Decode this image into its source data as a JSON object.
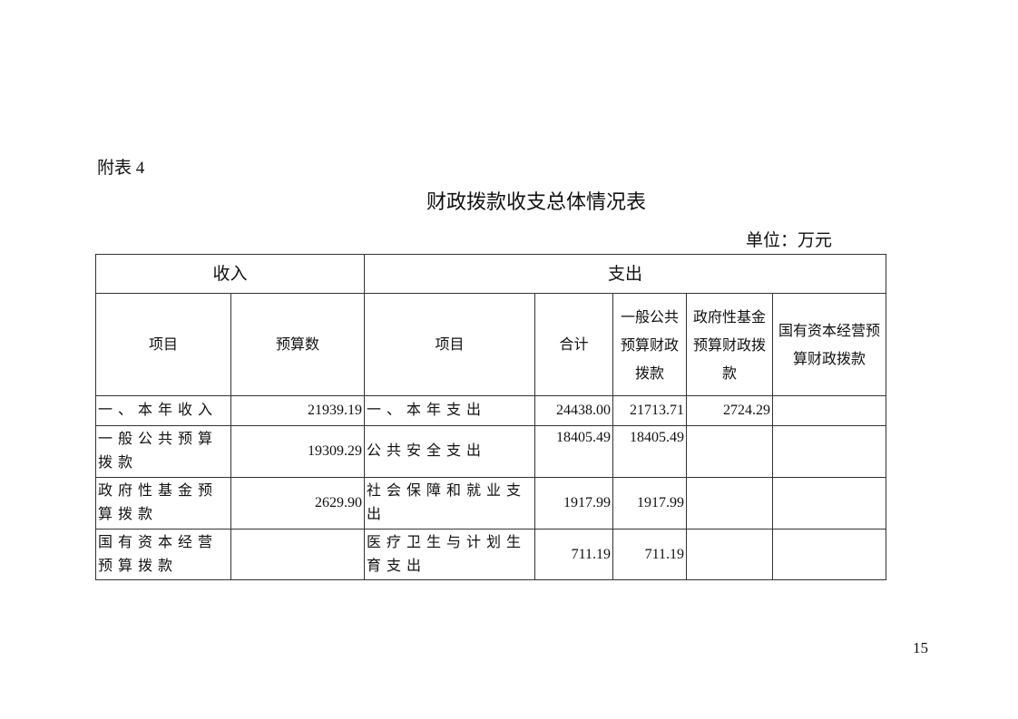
{
  "appendix_label": "附表 4",
  "title": "财政拨款收支总体情况表",
  "unit": "单位：万元",
  "page_number": "15",
  "table": {
    "group_headers": {
      "income": "收入",
      "expense": "支出"
    },
    "headers": [
      "项目",
      "预算数",
      "项目",
      "合计",
      "一般公共预算财政拨款",
      "政府性基金预算财政拨款",
      "国有资本经营预算财政拨款"
    ],
    "rows": [
      [
        "一、本年收入",
        "21939.19",
        "一、本年支出",
        "24438.00",
        "21713.71",
        "2724.29",
        ""
      ],
      [
        "一般公共预算拨款",
        "19309.29",
        "公共安全支出",
        "18405.49",
        "18405.49",
        "",
        ""
      ],
      [
        "政府性基金预算拨款",
        "2629.90",
        "社会保障和就业支出",
        "1917.99",
        "1917.99",
        "",
        ""
      ],
      [
        "国有资本经营预算拨款",
        "",
        "医疗卫生与计划生育支出",
        "711.19",
        "711.19",
        "",
        ""
      ]
    ]
  }
}
